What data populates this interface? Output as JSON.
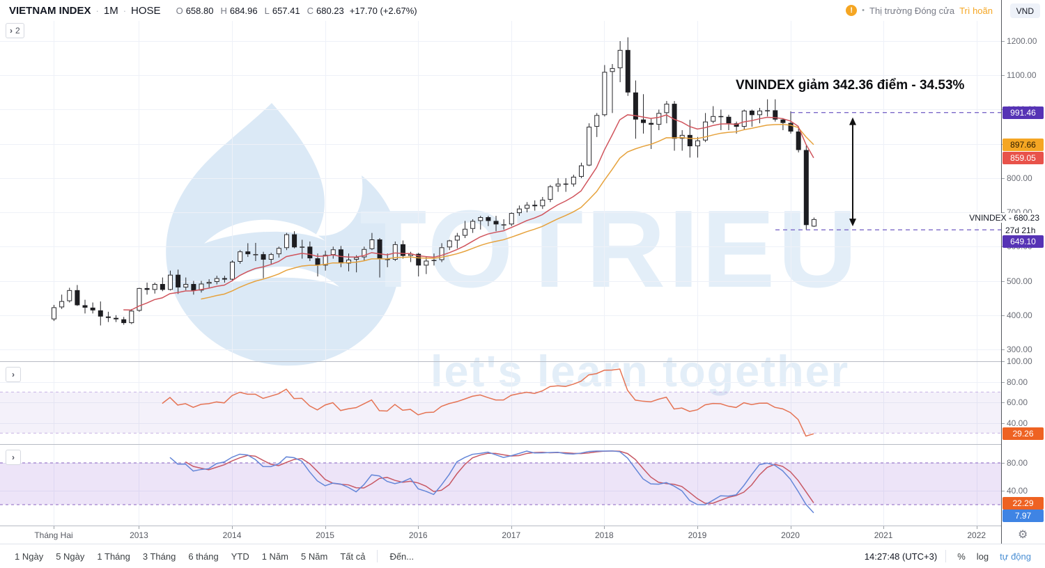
{
  "header": {
    "symbol": "VIETNAM INDEX",
    "dot": "·",
    "interval": "1M",
    "exchange": "HOSE",
    "ohlc": {
      "o_label": "O",
      "o": "658.80",
      "h_label": "H",
      "h": "684.96",
      "l_label": "L",
      "l": "657.41",
      "c_label": "C",
      "c": "680.23",
      "change": "+17.70 (+2.67%)"
    },
    "collapse_count": "2",
    "market_status": {
      "icon": "!",
      "bullet": "•",
      "text": "Thị trường Đóng cửa",
      "delay": "Trì hoãn"
    },
    "currency_button": "VND"
  },
  "ui": {
    "chevron": "›",
    "gear": "⚙"
  },
  "watermark": {
    "brand": "TOTRIEU",
    "tagline": "let's learn together"
  },
  "annotation": {
    "text": "VNINDEX giảm 342.36 điểm - 34.53%"
  },
  "price_axis": {
    "ticks": [
      {
        "label": "1200.00",
        "value": 1200
      },
      {
        "label": "1100.00",
        "value": 1100
      },
      {
        "label": "1000.00",
        "value": 1000
      },
      {
        "label": "900.00",
        "value": 900
      },
      {
        "label": "800.00",
        "value": 800
      },
      {
        "label": "700.00",
        "value": 700
      },
      {
        "label": "600.00",
        "value": 600
      },
      {
        "label": "500.00",
        "value": 500
      },
      {
        "label": "400.00",
        "value": 400
      },
      {
        "label": "300.00",
        "value": 300
      }
    ],
    "badges": [
      {
        "label": "991.46",
        "value": 991.46,
        "bg": "#5633b5",
        "fg": "#ffffff"
      },
      {
        "label": "897.66",
        "value": 897.66,
        "bg": "#f5a623",
        "fg": "#2a1a00"
      },
      {
        "label": "859.05",
        "value": 859.05,
        "bg": "#e8524a",
        "fg": "#ffffff"
      },
      {
        "label": "649.10",
        "value": 649.1,
        "bg": "#5633b5",
        "fg": "#ffffff",
        "y_override": 347
      }
    ],
    "last_label": "VNINDEX - 680.23",
    "countdown": "27d 21h"
  },
  "rsi_axis": {
    "ticks": [
      {
        "label": "100.00",
        "value": 100
      },
      {
        "label": "80.00",
        "value": 80
      },
      {
        "label": "60.00",
        "value": 60
      },
      {
        "label": "40.00",
        "value": 40
      }
    ],
    "badge": {
      "label": "29.26",
      "value": 29.26,
      "bg": "#ee6222",
      "fg": "#ffffff"
    }
  },
  "stoch_axis": {
    "ticks": [
      {
        "label": "80.00",
        "value": 80
      },
      {
        "label": "40.00",
        "value": 40
      }
    ],
    "badges": [
      {
        "label": "22.29",
        "value": 22.29,
        "bg": "#ee6222",
        "fg": "#ffffff"
      },
      {
        "label": "7.97",
        "value": 7.97,
        "bg": "#3f84e4",
        "fg": "#ffffff",
        "y_override": 741
      }
    ]
  },
  "time_axis": {
    "first_label": {
      "label": "Tháng Hai",
      "index": 0
    },
    "year_labels": [
      {
        "label": "2013",
        "index": 11
      },
      {
        "label": "2014",
        "index": 23
      },
      {
        "label": "2015",
        "index": 35
      },
      {
        "label": "2016",
        "index": 47
      },
      {
        "label": "2017",
        "index": 59
      },
      {
        "label": "2018",
        "index": 71
      },
      {
        "label": "2019",
        "index": 83
      },
      {
        "label": "2020",
        "index": 95
      },
      {
        "label": "2021",
        "index": 107
      },
      {
        "label": "2022",
        "index": 119
      }
    ]
  },
  "toolbar": {
    "ranges": [
      "1 Ngày",
      "5 Ngày",
      "1 Tháng",
      "3 Tháng",
      "6 tháng",
      "YTD",
      "1 Năm",
      "5 Năm",
      "Tất cả"
    ],
    "goto_label": "Đến...",
    "time": "14:27:48 (UTC+3)",
    "percent_label": "%",
    "log_label": "log",
    "auto_label": "tự động"
  },
  "chart_data": {
    "type": "candlestick",
    "title": "VIETNAM INDEX 1M HOSE",
    "interval": "1M",
    "start_month": "2012-02",
    "ylim": [
      280,
      1260
    ],
    "price_ticks": [
      300,
      400,
      500,
      600,
      700,
      800,
      900,
      1000,
      1100,
      1200
    ],
    "candles_ohlc": [
      [
        388,
        430,
        383,
        423
      ],
      [
        423,
        460,
        418,
        441
      ],
      [
        441,
        480,
        437,
        473
      ],
      [
        473,
        488,
        427,
        429
      ],
      [
        429,
        445,
        405,
        422
      ],
      [
        422,
        437,
        405,
        414
      ],
      [
        414,
        440,
        370,
        396
      ],
      [
        396,
        410,
        380,
        392
      ],
      [
        392,
        400,
        380,
        388
      ],
      [
        388,
        395,
        372,
        377
      ],
      [
        377,
        418,
        374,
        413
      ],
      [
        413,
        480,
        410,
        479
      ],
      [
        479,
        495,
        460,
        474
      ],
      [
        474,
        495,
        463,
        491
      ],
      [
        491,
        510,
        470,
        474
      ],
      [
        474,
        530,
        472,
        518
      ],
      [
        518,
        533,
        462,
        481
      ],
      [
        481,
        510,
        473,
        491
      ],
      [
        491,
        500,
        460,
        472
      ],
      [
        472,
        500,
        466,
        492
      ],
      [
        492,
        505,
        480,
        497
      ],
      [
        497,
        515,
        490,
        508
      ],
      [
        508,
        515,
        495,
        504
      ],
      [
        504,
        560,
        500,
        556
      ],
      [
        556,
        590,
        550,
        586
      ],
      [
        586,
        610,
        570,
        578
      ],
      [
        578,
        611,
        558,
        578
      ],
      [
        578,
        585,
        508,
        562
      ],
      [
        562,
        582,
        550,
        578
      ],
      [
        578,
        600,
        568,
        596
      ],
      [
        596,
        640,
        590,
        636
      ],
      [
        636,
        645,
        595,
        598
      ],
      [
        598,
        620,
        565,
        600
      ],
      [
        600,
        615,
        558,
        566
      ],
      [
        566,
        580,
        513,
        545
      ],
      [
        545,
        588,
        530,
        576
      ],
      [
        576,
        600,
        565,
        592
      ],
      [
        592,
        602,
        540,
        551
      ],
      [
        551,
        580,
        528,
        562
      ],
      [
        562,
        575,
        525,
        569
      ],
      [
        569,
        600,
        560,
        593
      ],
      [
        593,
        640,
        590,
        621
      ],
      [
        621,
        625,
        510,
        564
      ],
      [
        564,
        580,
        540,
        562
      ],
      [
        562,
        615,
        558,
        607
      ],
      [
        607,
        618,
        565,
        573
      ],
      [
        573,
        585,
        555,
        579
      ],
      [
        579,
        582,
        513,
        545
      ],
      [
        545,
        570,
        520,
        559
      ],
      [
        559,
        580,
        545,
        561
      ],
      [
        561,
        610,
        555,
        598
      ],
      [
        598,
        620,
        590,
        618
      ],
      [
        618,
        640,
        595,
        632
      ],
      [
        632,
        675,
        625,
        652
      ],
      [
        652,
        680,
        640,
        675
      ],
      [
        675,
        690,
        650,
        686
      ],
      [
        686,
        690,
        660,
        675
      ],
      [
        675,
        690,
        645,
        665
      ],
      [
        665,
        680,
        650,
        665
      ],
      [
        665,
        700,
        660,
        698
      ],
      [
        698,
        720,
        690,
        711
      ],
      [
        711,
        730,
        700,
        722
      ],
      [
        722,
        735,
        705,
        718
      ],
      [
        718,
        745,
        710,
        737
      ],
      [
        737,
        780,
        730,
        776
      ],
      [
        776,
        800,
        760,
        784
      ],
      [
        784,
        800,
        760,
        782
      ],
      [
        782,
        810,
        775,
        804
      ],
      [
        804,
        845,
        800,
        837
      ],
      [
        837,
        960,
        835,
        950
      ],
      [
        950,
        990,
        920,
        984
      ],
      [
        984,
        1130,
        980,
        1110
      ],
      [
        1110,
        1133,
        990,
        1121
      ],
      [
        1121,
        1200,
        1080,
        1174
      ],
      [
        1174,
        1211,
        1040,
        1050
      ],
      [
        1050,
        1085,
        915,
        971
      ],
      [
        971,
        1045,
        930,
        961
      ],
      [
        961,
        975,
        885,
        956
      ],
      [
        956,
        1000,
        940,
        990
      ],
      [
        990,
        1025,
        960,
        1017
      ],
      [
        1017,
        1025,
        880,
        915
      ],
      [
        915,
        940,
        880,
        926
      ],
      [
        926,
        970,
        860,
        893
      ],
      [
        893,
        920,
        860,
        910
      ],
      [
        910,
        990,
        905,
        965
      ],
      [
        965,
        1010,
        960,
        981
      ],
      [
        981,
        1000,
        940,
        979
      ],
      [
        979,
        985,
        940,
        960
      ],
      [
        960,
        965,
        930,
        950
      ],
      [
        950,
        1000,
        940,
        997
      ],
      [
        997,
        1000,
        950,
        984
      ],
      [
        984,
        1005,
        960,
        997
      ],
      [
        997,
        1030,
        980,
        998
      ],
      [
        998,
        1030,
        965,
        971
      ],
      [
        971,
        975,
        940,
        961
      ],
      [
        961,
        995,
        930,
        936
      ],
      [
        936,
        945,
        875,
        882
      ],
      [
        882,
        895,
        649,
        663
      ],
      [
        658.8,
        684.96,
        657.41,
        680.23
      ]
    ],
    "overlays": [
      {
        "name": "fast-ma",
        "type": "ema",
        "length": 10,
        "color": "#d0545c",
        "last_value": 859.05
      },
      {
        "name": "slow-ma",
        "type": "ema",
        "length": 20,
        "color": "#e6a23c",
        "last_value": 897.66
      }
    ],
    "rsi": {
      "length": 14,
      "color": "#e57353",
      "last_value": 29.26,
      "bands": [
        70,
        30
      ],
      "band_fill": "rgba(149,117,205,0.10)",
      "band_line": "#c6b1e4",
      "ticks": [
        40,
        60,
        80,
        100
      ]
    },
    "stoch": {
      "k_color": "#6486d8",
      "d_color": "#c75864",
      "k_last": 7.97,
      "d_last": 22.29,
      "bands": [
        80,
        20
      ],
      "band_fill": "rgba(140,86,214,0.16)",
      "band_line": "#8a63c2",
      "ticks": [
        40,
        80
      ]
    },
    "levels": {
      "high": 991.46,
      "low": 649.1
    },
    "legend_position": "none",
    "grid": true
  }
}
